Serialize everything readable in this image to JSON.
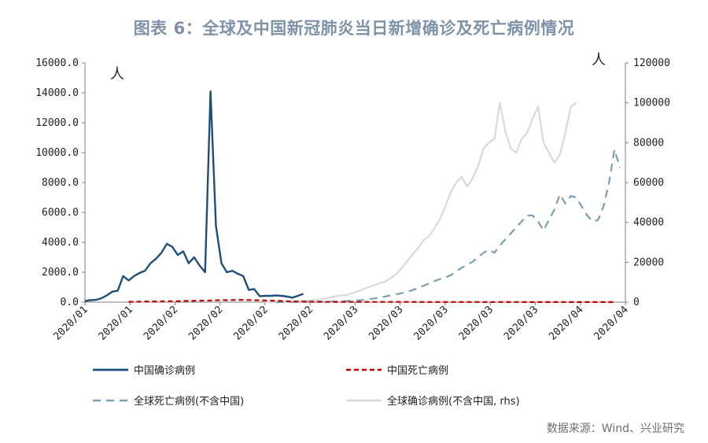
{
  "title": "图表 6：全球及中国新冠肺炎当日新增确诊及死亡病例情况",
  "source": "数据来源：Wind、兴业研究",
  "colors": {
    "china_confirmed": "#1f4e79",
    "china_deaths": "#c00000",
    "global_deaths": "#7a9fae",
    "global_confirmed": "#d9d9d9",
    "axis": "#7f7f7f",
    "title": "#7f93a8"
  },
  "chart_data": {
    "type": "line",
    "left_axis": {
      "unit": "人",
      "ylim": [
        0,
        16000
      ],
      "ticks": [
        "0.0",
        "2000.0",
        "4000.0",
        "6000.0",
        "8000.0",
        "10000.0",
        "12000.0",
        "14000.0",
        "16000.0"
      ]
    },
    "right_axis": {
      "unit": "人",
      "ylim": [
        0,
        120000
      ],
      "ticks": [
        "0",
        "20000",
        "40000",
        "60000",
        "80000",
        "100000",
        "120000"
      ]
    },
    "x_tick_labels": [
      "2020/01",
      "2020/01",
      "2020/02",
      "2020/02",
      "2020/02",
      "2020/02",
      "2020/03",
      "2020/03",
      "2020/03",
      "2020/03",
      "2020/03",
      "2020/04",
      "2020/04"
    ],
    "legend": [
      {
        "name": "中国确诊病例",
        "style": "solid",
        "color_key": "china_confirmed"
      },
      {
        "name": "中国死亡病例",
        "style": "dashed",
        "color_key": "china_deaths"
      },
      {
        "name": "全球死亡病例(不含中国)",
        "style": "dashed",
        "color_key": "global_deaths"
      },
      {
        "name": "全球确诊病例(不含中国, rhs)",
        "style": "solid",
        "color_key": "global_confirmed"
      }
    ],
    "series": [
      {
        "name": "中国确诊病例",
        "axis": "left",
        "style": "solid",
        "color_key": "china_confirmed",
        "x_start": 0,
        "values": [
          80,
          130,
          150,
          260,
          450,
          700,
          770,
          1750,
          1450,
          1750,
          1950,
          2100,
          2600,
          2900,
          3300,
          3900,
          3700,
          3150,
          3400,
          2600,
          3000,
          2450,
          2000,
          14100,
          5100,
          2600,
          2000,
          2100,
          1900,
          1750,
          820,
          880,
          400,
          420,
          420,
          450,
          420,
          380,
          300,
          420,
          560
        ]
      },
      {
        "name": "中国死亡病例",
        "axis": "left",
        "style": "dashed",
        "color_key": "china_deaths",
        "x_start": 8,
        "values": [
          20,
          25,
          30,
          40,
          45,
          50,
          55,
          60,
          65,
          70,
          80,
          85,
          90,
          100,
          105,
          110,
          120,
          140,
          130,
          140,
          150,
          145,
          140,
          130,
          125,
          110,
          100,
          90,
          80,
          60,
          50,
          40,
          30,
          30,
          25,
          20,
          20,
          15,
          15,
          15,
          15,
          15,
          15,
          15,
          15,
          15,
          15,
          15,
          15,
          15,
          15,
          15,
          15,
          10,
          10,
          10,
          10,
          10,
          10,
          10,
          10,
          10,
          10,
          10,
          10,
          10,
          10,
          10,
          10,
          10,
          10,
          10,
          10,
          5,
          5,
          5,
          5,
          5,
          5,
          5,
          5,
          5,
          5,
          5,
          5,
          5,
          5,
          5,
          5,
          5
        ]
      },
      {
        "name": "全球死亡病例(不含中国)",
        "axis": "left",
        "style": "dashed",
        "color_key": "global_deaths",
        "x_start": 35,
        "values": [
          0,
          5,
          5,
          10,
          10,
          15,
          20,
          25,
          30,
          35,
          40,
          50,
          60,
          80,
          100,
          120,
          150,
          200,
          250,
          300,
          380,
          450,
          520,
          600,
          700,
          800,
          950,
          1100,
          1250,
          1400,
          1550,
          1650,
          1800,
          2050,
          2300,
          2500,
          2700,
          3000,
          3300,
          3500,
          3300,
          3800,
          4200,
          4600,
          5000,
          5400,
          5800,
          5800,
          5400,
          4800,
          5500,
          6200,
          7200,
          6600,
          7100,
          7000,
          6400,
          5800,
          5400,
          5500,
          6400,
          8000,
          10200,
          9000
        ]
      },
      {
        "name": "全球确诊病例(不含中国, rhs)",
        "axis": "right",
        "style": "solid",
        "color_key": "global_confirmed",
        "x_start": 33,
        "values": [
          0,
          0,
          0,
          100,
          200,
          300,
          500,
          800,
          900,
          1100,
          1300,
          1800,
          2500,
          3000,
          3400,
          3600,
          4500,
          5500,
          6500,
          7500,
          8500,
          9500,
          10200,
          12000,
          14000,
          17000,
          20500,
          24000,
          27000,
          31000,
          33000,
          37000,
          41500,
          48000,
          55000,
          60000,
          63000,
          58000,
          62000,
          68000,
          77000,
          80000,
          82000,
          100000,
          86000,
          77000,
          75000,
          82000,
          85000,
          92000,
          98000,
          80000,
          75000,
          70000,
          74000,
          85000,
          98000,
          100000
        ]
      }
    ]
  }
}
